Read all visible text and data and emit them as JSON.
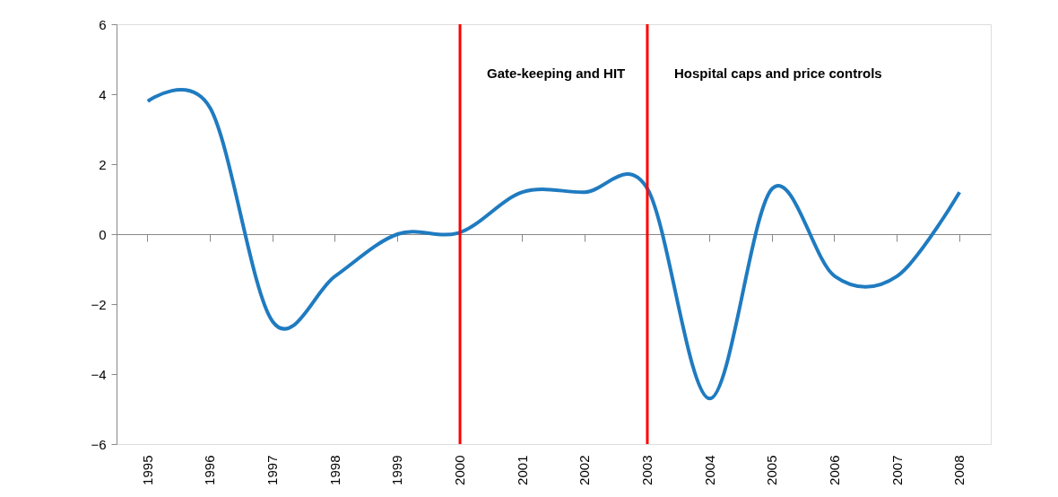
{
  "chart_data": {
    "type": "line",
    "categories": [
      "1995",
      "1996",
      "1997",
      "1998",
      "1999",
      "2000",
      "2001",
      "2002",
      "2003",
      "2004",
      "2005",
      "2006",
      "2007",
      "2008"
    ],
    "series": [
      {
        "color": "#1f7bc0",
        "values": [
          3.8,
          3.6,
          -2.5,
          -1.2,
          0.0,
          0.05,
          1.2,
          1.2,
          1.3,
          -4.7,
          1.3,
          -1.2,
          -1.2,
          1.2
        ]
      }
    ],
    "ylim": [
      -6,
      6
    ],
    "yticks": [
      -6,
      -4,
      -2,
      0,
      2,
      4,
      6
    ],
    "grid": false,
    "marker": "none",
    "line_style": "solid",
    "ref_lines": [
      {
        "axis": "x",
        "value": "2000",
        "label": "Gate-keeping and HIT",
        "color": "#ff0000"
      },
      {
        "axis": "x",
        "value": "2003",
        "label": "Hospital caps and price controls",
        "color": "#ff0000"
      }
    ]
  }
}
